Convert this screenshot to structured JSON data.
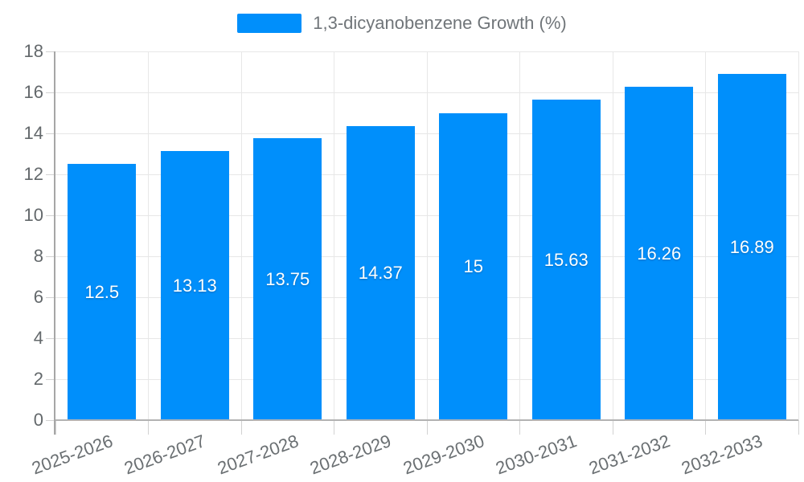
{
  "legend": {
    "label": "1,3-dicyanobenzene Growth (%)"
  },
  "chart_data": {
    "type": "bar",
    "title": "",
    "categories": [
      "2025-2026",
      "2026-2027",
      "2027-2028",
      "2028-2029",
      "2029-2030",
      "2030-2031",
      "2031-2032",
      "2032-2033"
    ],
    "series": [
      {
        "name": "1,3-dicyanobenzene Growth (%)",
        "values": [
          12.5,
          13.13,
          13.75,
          14.37,
          15,
          15.63,
          16.26,
          16.89
        ],
        "value_labels": [
          "12.5",
          "13.13",
          "13.75",
          "14.37",
          "15",
          "15.63",
          "16.26",
          "16.89"
        ]
      }
    ],
    "xlabel": "",
    "ylabel": "",
    "ylim": [
      0,
      18
    ],
    "yticks": [
      0,
      2,
      4,
      6,
      8,
      10,
      12,
      14,
      16,
      18
    ],
    "grid": "horizontal and vertical gridlines on",
    "legend_position": "top-center",
    "x_label_rotation_deg": -20,
    "value_labels_position": "inside-center"
  },
  "colors": {
    "bar": "#008FFB",
    "grid": "#e7e7e7",
    "y_axis_line": "#a6a6a6",
    "x_axis_line": "#b3b3b3",
    "tick": "#d2d2d2",
    "axis_label_text": "#63686b",
    "legend_text": "#707579",
    "value_label_text": "#ffffff",
    "background": "#ffffff"
  }
}
